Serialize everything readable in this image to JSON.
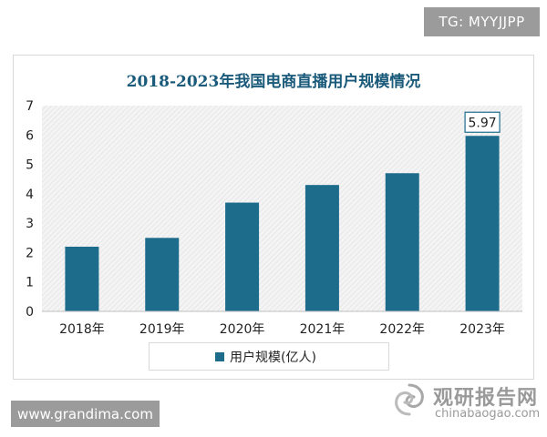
{
  "header_badge": "TG: MYYJJPP",
  "footer_badge": "www.grandima.com",
  "watermark": {
    "name_cn": "观研报告网",
    "domain": "chinabaogao.com"
  },
  "colors": {
    "bar": "#1d6c8c",
    "title": "#1a5a7a",
    "badge_bg": "#9b9b9b"
  },
  "chart_data": {
    "type": "bar",
    "title": "2018-2023年我国电商直播用户规模情况",
    "categories": [
      "2018年",
      "2019年",
      "2020年",
      "2021年",
      "2022年",
      "2023年"
    ],
    "series": [
      {
        "name": "用户规模(亿人)",
        "values": [
          2.2,
          2.5,
          3.7,
          4.3,
          4.7,
          5.97
        ]
      }
    ],
    "data_labels": [
      {
        "category": "2023年",
        "text": "5.97"
      }
    ],
    "ylim": [
      0,
      7
    ],
    "yticks": [
      0,
      1,
      2,
      3,
      4,
      5,
      6,
      7
    ],
    "grid": false,
    "legend": "bottom-center"
  }
}
